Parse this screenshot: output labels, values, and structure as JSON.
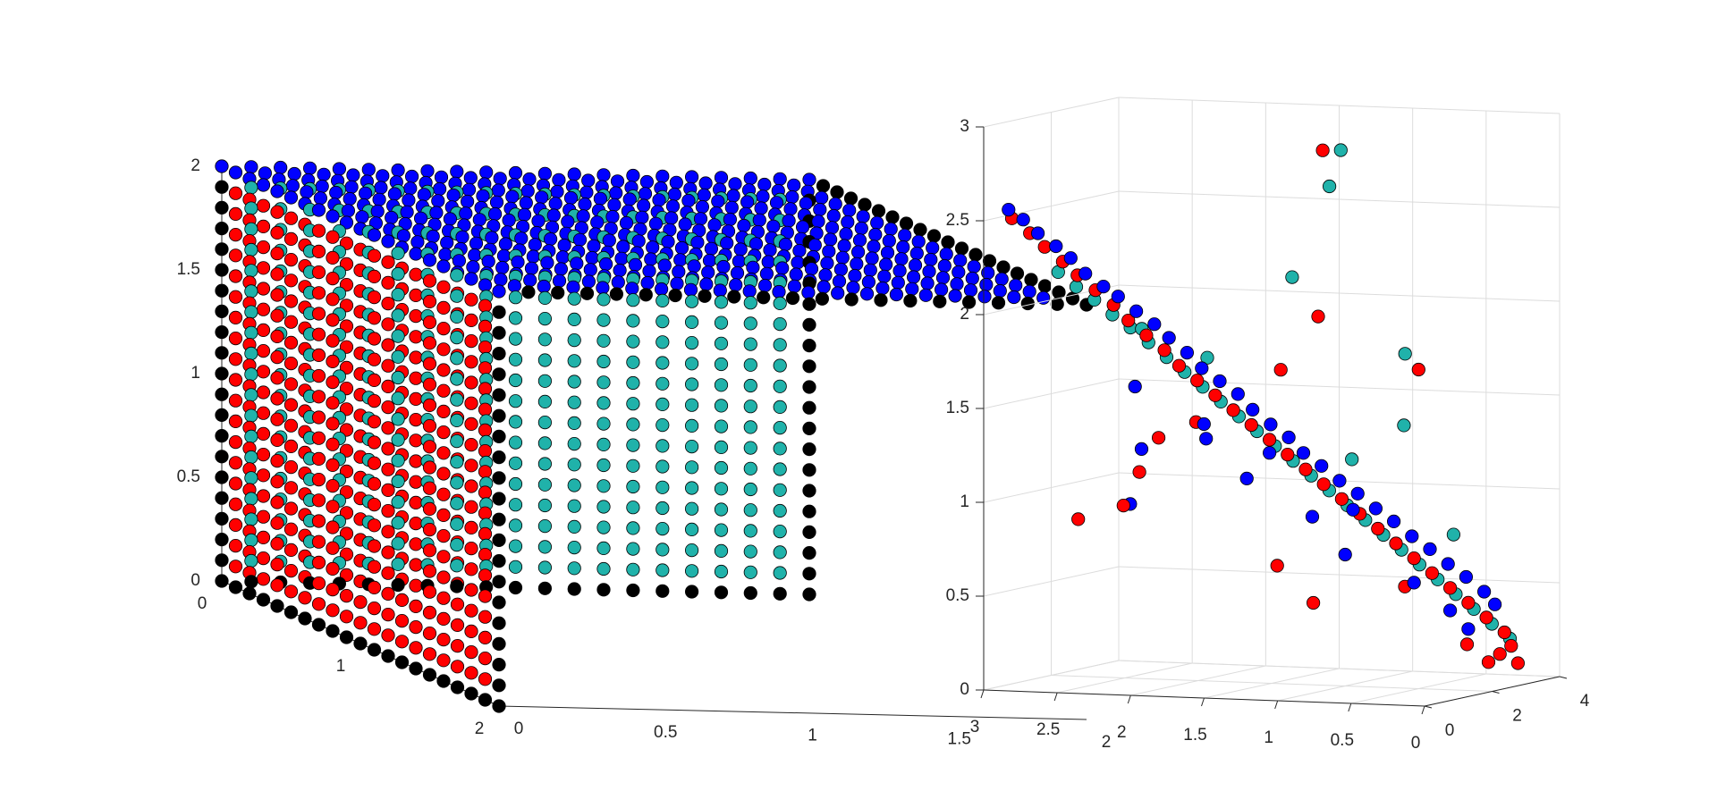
{
  "figure": {
    "background": "#ffffff"
  },
  "colors": {
    "cyan": "#20b2aa",
    "red": "#ff0000",
    "blue": "#0000ff",
    "black": "#000000",
    "edge": "#000000",
    "grid": "#dcdcdc",
    "axis": "#262626"
  },
  "chart_data": [
    {
      "type": "scatter",
      "subtype": "scatter3d",
      "description_of_data": "11x? lattice points on the faces of the cube [0,2]^3 sampled at step 0.1; face x=0 cyan, face y=0 red, face z=2 blue, edges black",
      "grid": false,
      "view": "isometric-like",
      "axes": {
        "x": {
          "ticks": [
            "0",
            "1",
            "2"
          ],
          "range": [
            0,
            2
          ]
        },
        "y": {
          "ticks": [
            "0",
            "0.5",
            "1",
            "1.5",
            "2"
          ],
          "range": [
            0,
            2
          ]
        },
        "z": {
          "ticks": [
            "0",
            "0.5",
            "1",
            "1.5",
            "2"
          ],
          "range": [
            0,
            2
          ]
        }
      },
      "lattice": {
        "min": 0,
        "max": 2,
        "step": 0.1
      },
      "face_series": [
        {
          "face": "x=0",
          "color": "cyan"
        },
        {
          "face": "y=0",
          "color": "red"
        },
        {
          "face": "z=2",
          "color": "blue"
        },
        {
          "face": "edges",
          "color": "black"
        }
      ]
    },
    {
      "type": "scatter",
      "subtype": "scatter3d",
      "grid": true,
      "axes": {
        "x": {
          "ticks": [
            "3",
            "2.5",
            "2",
            "1.5",
            "1",
            "0.5",
            "0"
          ],
          "range": [
            0,
            3
          ]
        },
        "y": {
          "ticks": [
            "0",
            "2",
            "4"
          ],
          "range": [
            0,
            4
          ]
        },
        "z": {
          "ticks": [
            "0",
            "0.5",
            "1",
            "1.5",
            "2",
            "2.5",
            "3"
          ],
          "range": [
            0,
            3
          ]
        }
      },
      "series": [
        {
          "color": "blue",
          "points": [
            [
              2.9,
              0.3,
              2.55
            ],
            [
              2.8,
              0.3,
              2.5
            ],
            [
              2.7,
              0.3,
              2.43
            ],
            [
              2.6,
              0.4,
              2.36
            ],
            [
              2.5,
              0.4,
              2.3
            ],
            [
              2.4,
              0.4,
              2.22
            ],
            [
              2.3,
              0.5,
              2.15
            ],
            [
              2.2,
              0.5,
              2.1
            ],
            [
              2.1,
              0.6,
              2.02
            ],
            [
              2.0,
              0.7,
              1.95
            ],
            [
              1.9,
              0.7,
              1.88
            ],
            [
              1.8,
              0.8,
              1.8
            ],
            [
              1.7,
              0.8,
              1.72
            ],
            [
              1.6,
              0.9,
              1.65
            ],
            [
              1.5,
              1.0,
              1.58
            ],
            [
              1.4,
              1.0,
              1.5
            ],
            [
              1.3,
              1.1,
              1.42
            ],
            [
              1.2,
              1.2,
              1.35
            ],
            [
              1.1,
              1.2,
              1.27
            ],
            [
              1.0,
              1.3,
              1.2
            ],
            [
              0.9,
              1.4,
              1.12
            ],
            [
              0.8,
              1.5,
              1.05
            ],
            [
              0.7,
              1.6,
              0.97
            ],
            [
              0.6,
              1.7,
              0.9
            ],
            [
              0.5,
              1.8,
              0.82
            ],
            [
              0.4,
              1.9,
              0.75
            ],
            [
              0.3,
              2.0,
              0.67
            ],
            [
              0.2,
              2.1,
              0.6
            ],
            [
              0.1,
              2.2,
              0.52
            ],
            [
              0.05,
              2.3,
              0.45
            ],
            [
              2.5,
              2.5,
              1.2
            ],
            [
              2.6,
              2.6,
              0.9
            ],
            [
              1.9,
              1.8,
              1.3
            ],
            [
              1.6,
              1.7,
              1.1
            ],
            [
              1.2,
              1.9,
              0.9
            ],
            [
              1.0,
              2.0,
              0.7
            ],
            [
              0.6,
              2.3,
              0.55
            ],
            [
              0.4,
              2.5,
              0.4
            ],
            [
              2.2,
              1.0,
              1.6
            ],
            [
              1.8,
              1.3,
              1.4
            ],
            [
              1.4,
              1.5,
              1.25
            ],
            [
              0.9,
              1.8,
              0.95
            ],
            [
              0.3,
              2.6,
              0.3
            ]
          ]
        },
        {
          "color": "red",
          "points": [
            [
              2.9,
              0.4,
              2.5
            ],
            [
              2.8,
              0.5,
              2.42
            ],
            [
              2.7,
              0.5,
              2.35
            ],
            [
              2.6,
              0.6,
              2.27
            ],
            [
              2.5,
              0.6,
              2.2
            ],
            [
              2.4,
              0.7,
              2.12
            ],
            [
              2.3,
              0.8,
              2.04
            ],
            [
              2.2,
              0.8,
              1.96
            ],
            [
              2.1,
              0.9,
              1.88
            ],
            [
              2.0,
              1.0,
              1.8
            ],
            [
              1.9,
              1.0,
              1.72
            ],
            [
              1.8,
              1.1,
              1.64
            ],
            [
              1.7,
              1.2,
              1.56
            ],
            [
              1.6,
              1.3,
              1.48
            ],
            [
              1.5,
              1.4,
              1.4
            ],
            [
              1.4,
              1.5,
              1.32
            ],
            [
              1.3,
              1.6,
              1.24
            ],
            [
              1.2,
              1.7,
              1.16
            ],
            [
              1.1,
              1.8,
              1.08
            ],
            [
              1.0,
              1.9,
              1.0
            ],
            [
              0.9,
              2.0,
              0.92
            ],
            [
              0.8,
              2.1,
              0.84
            ],
            [
              0.7,
              2.2,
              0.76
            ],
            [
              0.6,
              2.3,
              0.68
            ],
            [
              0.5,
              2.4,
              0.6
            ],
            [
              0.4,
              2.5,
              0.52
            ],
            [
              0.3,
              2.6,
              0.44
            ],
            [
              0.2,
              2.7,
              0.36
            ],
            [
              0.1,
              2.8,
              0.28
            ],
            [
              0.1,
              3.0,
              0.2
            ],
            [
              0.2,
              3.1,
              0.15
            ],
            [
              0.1,
              3.2,
              0.1
            ],
            [
              0.9,
              0.9,
              2.9
            ],
            [
              0.5,
              2.0,
              1.7
            ],
            [
              2.4,
              2.0,
              1.1
            ],
            [
              2.6,
              2.4,
              0.9
            ],
            [
              3.0,
              2.8,
              0.8
            ],
            [
              1.6,
              2.6,
              0.6
            ],
            [
              0.8,
              2.9,
              0.5
            ],
            [
              1.0,
              1.2,
              2.0
            ],
            [
              1.3,
              1.4,
              1.7
            ],
            [
              1.9,
              1.5,
              1.4
            ],
            [
              2.2,
              1.7,
              1.3
            ],
            [
              0.4,
              3.0,
              0.2
            ],
            [
              0.3,
              3.2,
              0.1
            ],
            [
              1.4,
              2.8,
              0.4
            ]
          ]
        },
        {
          "color": "cyan",
          "points": [
            [
              2.7,
              0.9,
              2.2
            ],
            [
              2.6,
              1.0,
              2.12
            ],
            [
              2.5,
              1.1,
              2.05
            ],
            [
              2.4,
              1.2,
              1.97
            ],
            [
              2.3,
              1.3,
              1.9
            ],
            [
              2.2,
              1.4,
              1.82
            ],
            [
              2.1,
              1.5,
              1.74
            ],
            [
              2.0,
              1.6,
              1.66
            ],
            [
              1.9,
              1.7,
              1.58
            ],
            [
              1.8,
              1.8,
              1.5
            ],
            [
              1.7,
              1.9,
              1.42
            ],
            [
              1.6,
              2.0,
              1.34
            ],
            [
              1.5,
              2.1,
              1.26
            ],
            [
              1.4,
              2.2,
              1.18
            ],
            [
              1.3,
              2.3,
              1.1
            ],
            [
              1.2,
              2.4,
              1.02
            ],
            [
              1.1,
              2.5,
              0.94
            ],
            [
              1.0,
              2.6,
              0.86
            ],
            [
              0.9,
              2.7,
              0.78
            ],
            [
              0.8,
              2.8,
              0.7
            ],
            [
              0.7,
              2.9,
              0.62
            ],
            [
              0.6,
              3.0,
              0.54
            ],
            [
              0.5,
              3.1,
              0.46
            ],
            [
              0.4,
              3.2,
              0.38
            ],
            [
              0.3,
              3.3,
              0.3
            ],
            [
              0.2,
              3.4,
              0.22
            ],
            [
              0.8,
              1.0,
              2.9
            ],
            [
              0.9,
              1.1,
              2.7
            ],
            [
              1.2,
              1.3,
              2.2
            ],
            [
              0.5,
              1.6,
              1.8
            ],
            [
              0.6,
              2.0,
              1.4
            ],
            [
              1.0,
              2.2,
              1.2
            ],
            [
              1.8,
              1.4,
              1.75
            ],
            [
              2.2,
              1.2,
              1.9
            ],
            [
              0.4,
              2.6,
              0.8
            ]
          ]
        }
      ]
    }
  ]
}
